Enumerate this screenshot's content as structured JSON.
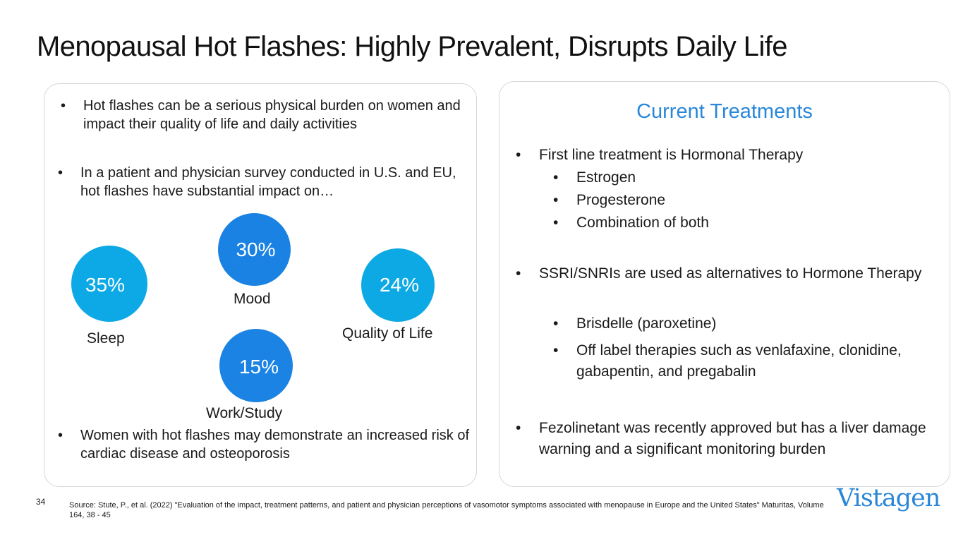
{
  "slide": {
    "title": "Menopausal Hot Flashes: Highly Prevalent, Disrupts Daily Life",
    "page_number": "34"
  },
  "left_panel": {
    "bullet_marker": "•",
    "bullets": [
      "Hot flashes can be a serious physical burden on women and impact their quality of life and daily activities",
      "In a patient and physician survey conducted in U.S. and EU, hot flashes have substantial impact on…",
      "Women with hot flashes may demonstrate an increased risk of cardiac disease and osteoporosis"
    ],
    "impacts": [
      {
        "value": "35%",
        "label": "Sleep",
        "color": "#0da9e6"
      },
      {
        "value": "30%",
        "label": "Mood",
        "color": "#1a82e2"
      },
      {
        "value": "24%",
        "label": "Quality of Life",
        "color": "#0ca9e4"
      },
      {
        "value": "15%",
        "label": "Work/Study",
        "color": "#1a83e3"
      }
    ]
  },
  "right_panel": {
    "title": "Current Treatments",
    "title_color": "#2a87d8",
    "bullet_marker": "•",
    "items": [
      {
        "text": "First line treatment is Hormonal Therapy",
        "subitems": [
          "Estrogen",
          "Progesterone",
          "Combination of both"
        ]
      },
      {
        "text": "SSRI/SNRIs are used as alternatives to Hormone Therapy",
        "subitems": [
          "Brisdelle (paroxetine)",
          "Off label therapies such as venlafaxine, clonidine, gabapentin, and pregabalin"
        ]
      },
      {
        "text": "Fezolinetant was recently approved but has a liver damage warning and a significant monitoring burden",
        "subitems": []
      }
    ]
  },
  "footer": {
    "source": "Source: Stute, P., et al. (2022) \"Evaluation of the impact, treatment patterns, and patient and physician perceptions of vasomotor symptoms associated with menopause in Europe and the United States\" Maturitas, Volume 164, 38 - 45",
    "logo_text": "Vistagen",
    "logo_color": "#2a86d6"
  }
}
